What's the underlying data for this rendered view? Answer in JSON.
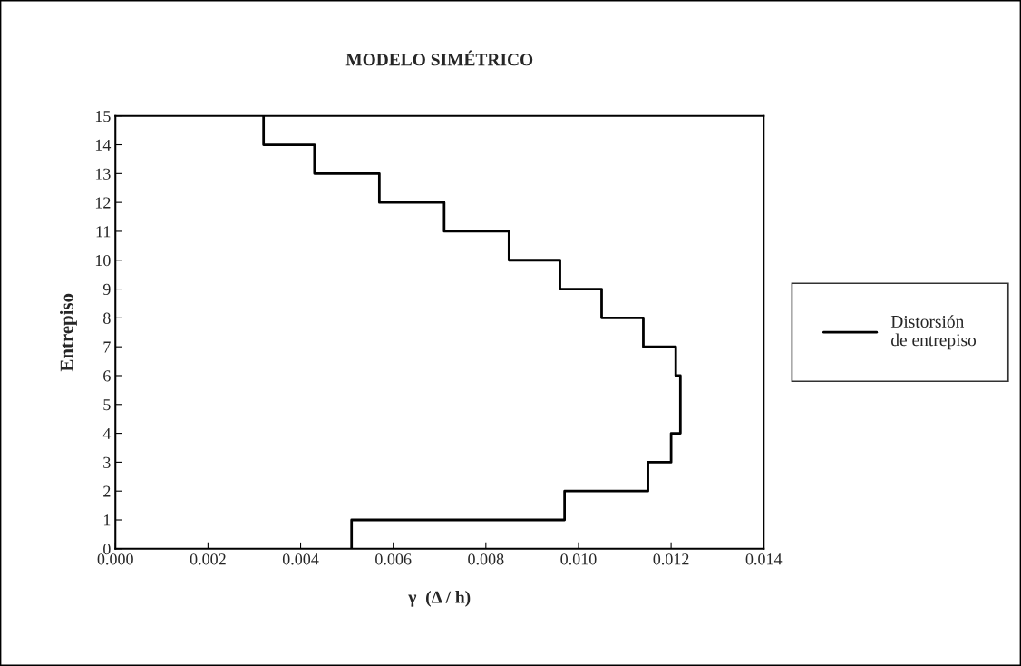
{
  "chart_data": {
    "type": "line",
    "title": "MODELO SIMÉTRICO",
    "xlabel": "γ  (Δ / h)",
    "ylabel": "Entrepiso",
    "series": [
      {
        "name": "Distorsión\nde entrepiso",
        "color": "#000000",
        "x": [
          0.0051,
          0.0051,
          0.0097,
          0.0097,
          0.0115,
          0.0115,
          0.012,
          0.012,
          0.0122,
          0.0122,
          0.0122,
          0.0122,
          0.0121,
          0.0121,
          0.0114,
          0.0114,
          0.0105,
          0.0105,
          0.0096,
          0.0096,
          0.0085,
          0.0085,
          0.0071,
          0.0071,
          0.0057,
          0.0057,
          0.0043,
          0.0043,
          0.0032,
          0.0032
        ],
        "values": [
          0,
          1,
          1,
          2,
          2,
          3,
          3,
          4,
          4,
          5,
          5,
          6,
          6,
          7,
          7,
          8,
          8,
          9,
          9,
          10,
          10,
          11,
          11,
          12,
          12,
          13,
          13,
          14,
          14,
          15
        ]
      }
    ],
    "xlim": [
      0,
      0.014
    ],
    "ylim": [
      0,
      15
    ],
    "xticks": [
      {
        "value": 0,
        "label": "0.000"
      },
      {
        "value": 0.002,
        "label": "0.002"
      },
      {
        "value": 0.004,
        "label": "0.004"
      },
      {
        "value": 0.006,
        "label": "0.006"
      },
      {
        "value": 0.008,
        "label": "0.008"
      },
      {
        "value": 0.01,
        "label": "0.010"
      },
      {
        "value": 0.012,
        "label": "0.012"
      },
      {
        "value": 0.014,
        "label": "0.014"
      }
    ],
    "yticks": [
      0,
      1,
      2,
      3,
      4,
      5,
      6,
      7,
      8,
      9,
      10,
      11,
      12,
      13,
      14,
      15
    ],
    "grid": false,
    "legend": "right",
    "marker": "none",
    "line_style": "solid"
  }
}
